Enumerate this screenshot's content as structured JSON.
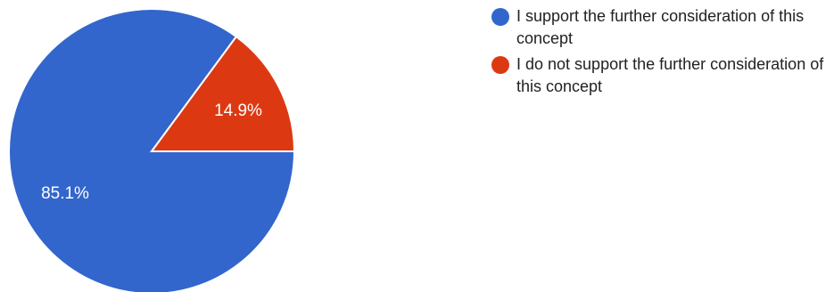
{
  "chart_data": {
    "type": "pie",
    "categories": [
      "I support the further consideration of this concept",
      "I do not support the further consideration of this concept"
    ],
    "values": [
      85.1,
      14.9
    ],
    "value_labels": [
      "85.1%",
      "14.9%"
    ],
    "colors": [
      "#3366cc",
      "#dc3912"
    ],
    "legend_position": "right"
  }
}
